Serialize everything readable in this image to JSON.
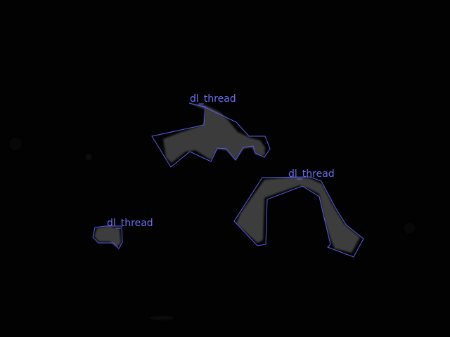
{
  "image": {
    "background_color": "#020202",
    "outline_color": "#5a5eea",
    "label_color": "#6a6ef0",
    "region_fill": "#3a3a3a"
  },
  "annotations": [
    {
      "id": "region-1",
      "label": "dl_thread"
    },
    {
      "id": "region-2",
      "label": "dl_thread"
    },
    {
      "id": "region-3",
      "label": "dl_thread"
    }
  ]
}
